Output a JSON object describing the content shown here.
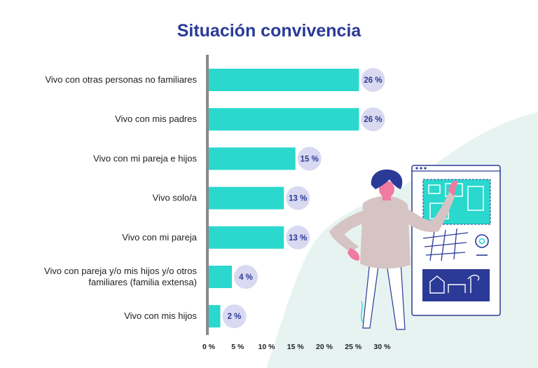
{
  "colors": {
    "title": "#2b3a97",
    "bar": "#2ad8cd",
    "badge": "#d9d9f1",
    "value_text": "#2b3a97",
    "axis": "#8a8a8a",
    "background_blob": "#e6f3f1"
  },
  "illustration": {
    "name": "woman-pointing-at-map-board-illustration"
  },
  "chart_data": {
    "type": "bar",
    "orientation": "horizontal",
    "title": "Situación convivencia",
    "xlabel": "",
    "ylabel": "",
    "xlim": [
      0,
      30
    ],
    "grid": false,
    "categories": [
      [
        "Vivo con otras personas no familiares"
      ],
      [
        "Vivo con mis padres"
      ],
      [
        "Vivo con mi pareja e hijos"
      ],
      [
        "Vivo solo/a"
      ],
      [
        "Vivo con mi pareja"
      ],
      [
        "Vivo con pareja y/o mis hijos y/o otros",
        "familiares (familia extensa)"
      ],
      [
        "Vivo con mis hijos"
      ]
    ],
    "values": [
      26,
      26,
      15,
      13,
      13,
      4,
      2
    ],
    "value_labels": [
      "26 %",
      "26 %",
      "15 %",
      "13 %",
      "13 %",
      "4 %",
      "2 %"
    ],
    "x_ticks": [
      0,
      5,
      10,
      15,
      20,
      25,
      30
    ],
    "x_tick_labels": [
      "0 %",
      "5 %",
      "10 %",
      "15 %",
      "20 %",
      "25 %",
      "30 %"
    ]
  }
}
